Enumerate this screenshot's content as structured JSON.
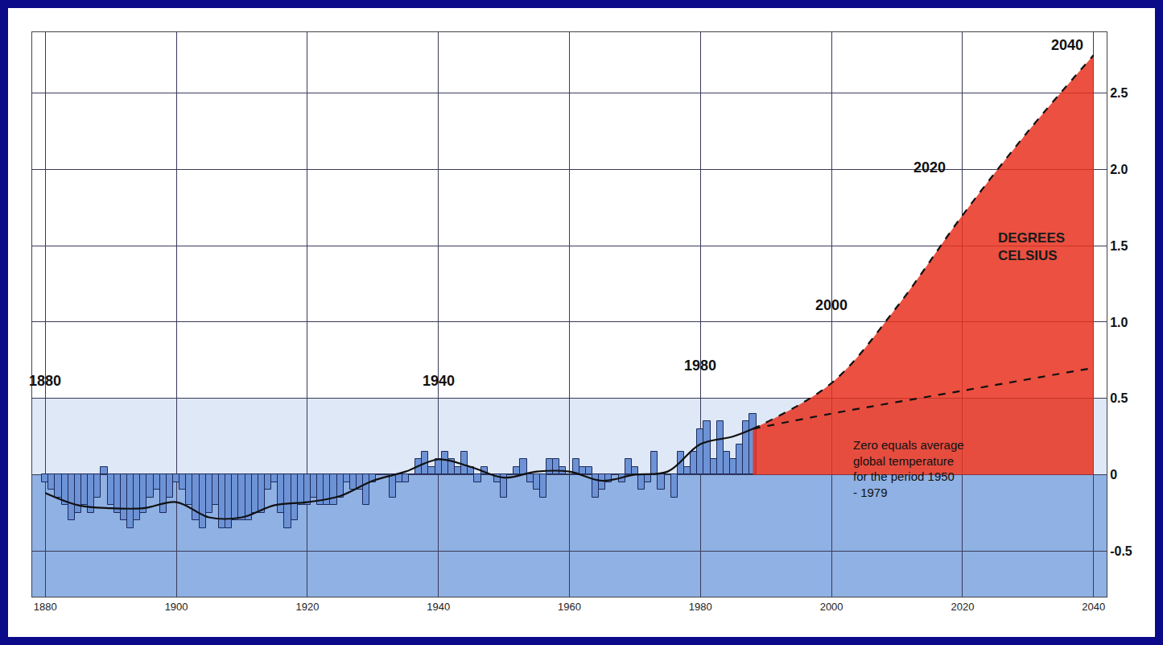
{
  "chart_data": {
    "type": "bar",
    "y_label": "DEGREES CELSIUS",
    "xlim": [
      1878,
      2042
    ],
    "xticks": [
      1880,
      1900,
      1920,
      1940,
      1960,
      1980,
      2000,
      2020,
      2040
    ],
    "ylim": [
      -0.8,
      2.9
    ],
    "yticks": [
      -0.5,
      0,
      0.5,
      {
        "value": 1,
        "label": "1.0"
      },
      1.5,
      {
        "value": 2,
        "label": "2.0"
      },
      2.5
    ],
    "grid": true,
    "series": [
      {
        "type": "bar",
        "color": "#6d93d6",
        "x": [
          1880,
          1881,
          1882,
          1883,
          1884,
          1885,
          1886,
          1887,
          1888,
          1889,
          1890,
          1891,
          1892,
          1893,
          1894,
          1895,
          1896,
          1897,
          1898,
          1899,
          1900,
          1901,
          1902,
          1903,
          1904,
          1905,
          1906,
          1907,
          1908,
          1909,
          1910,
          1911,
          1912,
          1913,
          1914,
          1915,
          1916,
          1917,
          1918,
          1919,
          1920,
          1921,
          1922,
          1923,
          1924,
          1925,
          1926,
          1927,
          1928,
          1929,
          1930,
          1931,
          1932,
          1933,
          1934,
          1935,
          1936,
          1937,
          1938,
          1939,
          1940,
          1941,
          1942,
          1943,
          1944,
          1945,
          1946,
          1947,
          1948,
          1949,
          1950,
          1951,
          1952,
          1953,
          1954,
          1955,
          1956,
          1957,
          1958,
          1959,
          1960,
          1961,
          1962,
          1963,
          1964,
          1965,
          1966,
          1967,
          1968,
          1969,
          1970,
          1971,
          1972,
          1973,
          1974,
          1975,
          1976,
          1977,
          1978,
          1979,
          1980,
          1981,
          1982,
          1983,
          1984,
          1985,
          1986,
          1987,
          1988
        ],
        "values": [
          -0.05,
          -0.1,
          -0.15,
          -0.2,
          -0.3,
          -0.25,
          -0.2,
          -0.25,
          -0.15,
          0.05,
          -0.2,
          -0.25,
          -0.3,
          -0.35,
          -0.3,
          -0.25,
          -0.15,
          -0.1,
          -0.25,
          -0.15,
          -0.05,
          -0.1,
          -0.2,
          -0.3,
          -0.35,
          -0.25,
          -0.2,
          -0.35,
          -0.35,
          -0.3,
          -0.3,
          -0.3,
          -0.25,
          -0.25,
          -0.1,
          -0.05,
          -0.25,
          -0.35,
          -0.3,
          -0.2,
          -0.2,
          -0.15,
          -0.2,
          -0.2,
          -0.2,
          -0.15,
          -0.05,
          -0.1,
          -0.1,
          -0.2,
          -0.05,
          0.0,
          0.0,
          -0.15,
          -0.05,
          -0.05,
          0.0,
          0.1,
          0.15,
          0.05,
          0.1,
          0.15,
          0.1,
          0.05,
          0.15,
          0.05,
          -0.05,
          0.05,
          0.0,
          -0.05,
          -0.15,
          0.0,
          0.05,
          0.1,
          -0.05,
          -0.1,
          -0.15,
          0.1,
          0.1,
          0.05,
          0.0,
          0.1,
          0.05,
          0.05,
          -0.15,
          -0.1,
          -0.05,
          0.0,
          -0.05,
          0.1,
          0.05,
          -0.1,
          -0.05,
          0.15,
          -0.1,
          0.0,
          -0.15,
          0.15,
          0.05,
          0.15,
          0.3,
          0.35,
          0.1,
          0.35,
          0.15,
          0.1,
          0.2,
          0.35,
          0.4
        ]
      },
      {
        "type": "line",
        "color": "#111111",
        "line_style": "solid",
        "x": [
          1880,
          1885,
          1890,
          1895,
          1900,
          1905,
          1910,
          1915,
          1920,
          1925,
          1930,
          1935,
          1940,
          1945,
          1950,
          1955,
          1960,
          1965,
          1970,
          1975,
          1980,
          1985,
          1988
        ],
        "values": [
          -0.12,
          -0.2,
          -0.22,
          -0.22,
          -0.18,
          -0.28,
          -0.28,
          -0.2,
          -0.18,
          -0.14,
          -0.04,
          0.02,
          0.1,
          0.05,
          -0.02,
          0.02,
          0.02,
          -0.04,
          0.0,
          0.02,
          0.2,
          0.25,
          0.3
        ]
      },
      {
        "type": "area",
        "color": "#e8311f",
        "line_style": "dashed",
        "x": [
          1988,
          2000,
          2010,
          2020,
          2030,
          2040
        ],
        "values": [
          0.3,
          0.6,
          1.1,
          1.7,
          2.25,
          2.75
        ]
      },
      {
        "type": "line",
        "color": "#111111",
        "line_style": "dashed",
        "x": [
          1988,
          2000,
          2020,
          2040
        ],
        "values": [
          0.3,
          0.4,
          0.55,
          0.7
        ]
      }
    ],
    "annotations": [
      {
        "text": "1880",
        "x": 1880,
        "y": 0.55
      },
      {
        "text": "1940",
        "x": 1940,
        "y": 0.55
      },
      {
        "text": "1980",
        "x": 1980,
        "y": 0.65
      },
      {
        "text": "2000",
        "x": 2000,
        "y": 1.05
      },
      {
        "text": "2020",
        "x": 2015,
        "y": 1.95
      },
      {
        "text": "2040",
        "x": 2036,
        "y": 2.75
      },
      {
        "text": "Zero equals average global temperature for the period 1950 - 1979",
        "x": 2003,
        "y": 0.25
      }
    ]
  }
}
